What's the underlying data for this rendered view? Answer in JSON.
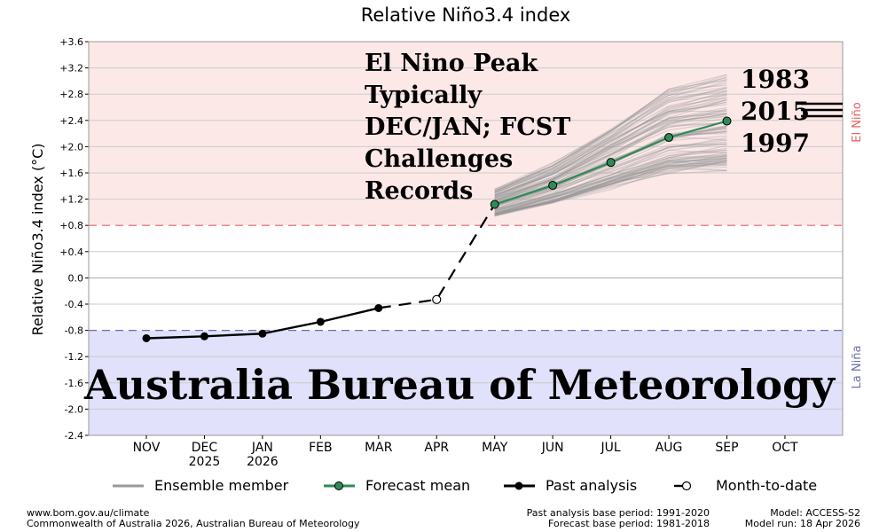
{
  "chart_data": {
    "type": "line",
    "title": "Relative Niño3.4 index",
    "ylabel": "Relative Niño3.4 index (°C)",
    "xlabel": "",
    "ylim": [
      -2.4,
      3.6
    ],
    "yticks": [
      "+3.6",
      "+3.2",
      "+2.8",
      "+2.4",
      "+2.0",
      "+1.6",
      "+1.2",
      "+0.8",
      "+0.4",
      "0.0",
      "-0.4",
      "-0.8",
      "-1.2",
      "-1.6",
      "-2.0",
      "-2.4"
    ],
    "ytick_values": [
      3.6,
      3.2,
      2.8,
      2.4,
      2.0,
      1.6,
      1.2,
      0.8,
      0.4,
      0.0,
      -0.4,
      -0.8,
      -1.2,
      -1.6,
      -2.0,
      -2.4
    ],
    "categories": [
      "NOV",
      "DEC",
      "JAN",
      "FEB",
      "MAR",
      "APR",
      "MAY",
      "JUN",
      "JUL",
      "AUG",
      "SEP",
      "OCT"
    ],
    "category_sublabels": [
      "",
      "2025",
      "2026",
      "",
      "",
      "",
      "",
      "",
      "",
      "",
      "",
      ""
    ],
    "el_nino_threshold": 0.8,
    "la_nina_threshold": -0.8,
    "el_nino_label": "El Niño",
    "la_nina_label": "La Niña",
    "series": [
      {
        "name": "Past analysis",
        "x": [
          "NOV",
          "DEC",
          "JAN",
          "FEB",
          "MAR"
        ],
        "values": [
          -0.92,
          -0.89,
          -0.85,
          -0.67,
          -0.46
        ]
      },
      {
        "name": "Month-to-date",
        "x": [
          "MAR",
          "APR",
          "MAY"
        ],
        "values": [
          -0.46,
          -0.33,
          1.12
        ]
      },
      {
        "name": "Forecast mean",
        "x": [
          "MAY",
          "JUN",
          "JUL",
          "AUG",
          "SEP"
        ],
        "values": [
          1.12,
          1.41,
          1.76,
          2.14,
          2.39
        ]
      },
      {
        "name": "Ensemble member",
        "x": [
          "MAY",
          "JUN",
          "JUL",
          "AUG",
          "SEP"
        ],
        "spread_min": [
          0.95,
          1.15,
          1.4,
          1.65,
          1.7
        ],
        "spread_max": [
          1.35,
          1.75,
          2.3,
          2.9,
          3.1
        ]
      }
    ],
    "legend": [
      "Ensemble member",
      "Forecast mean",
      "Past analysis",
      "Month-to-date"
    ],
    "legend_placement": "bottom",
    "grid": true,
    "annotation_main": [
      "El Nino Peak",
      "Typically",
      "DEC/JAN; FCST",
      "Challenges",
      "Records"
    ],
    "annotation_years": [
      "1983",
      "2015",
      "1997"
    ],
    "watermark": "Australia Bureau of Meteorology"
  },
  "colors": {
    "el_nino_fill": "#fde8e8",
    "la_nina_fill": "#e1e1fb",
    "el_nino_line": "#e86060",
    "la_nina_line": "#6e6eb0",
    "forecast": "#2e8b57",
    "ensemble": "#999999",
    "past": "#000000"
  },
  "footer": {
    "left_line1": "www.bom.gov.au/climate",
    "left_line2": "Commonwealth of Australia 2026, Australian Bureau of Meteorology",
    "mid_line1": "Past analysis base period: 1991-2020",
    "mid_line2": "Forecast base period: 1981-2018",
    "right_line1": "Model: ACCESS-S2",
    "right_line2": "Model run: 18 Apr 2026"
  }
}
